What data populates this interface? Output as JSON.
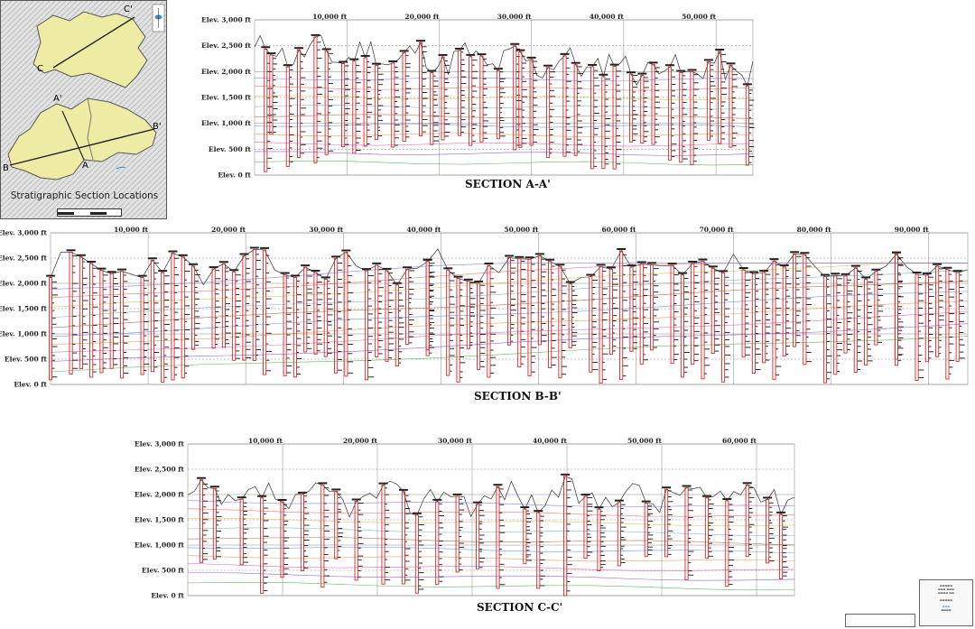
{
  "map": {
    "title": "Stratigraphic Section Locations",
    "labels": {
      "c_prime": "C'",
      "c": "C",
      "a_prime": "A'",
      "b_prime": "B'",
      "b": "B",
      "a": "A"
    }
  },
  "sections": [
    {
      "id": "A-A'",
      "title": "SECTION A-A'",
      "elev_labels": [
        "Elev. 3,000 ft",
        "Elev. 2,500 ft",
        "Elev. 2,000 ft",
        "Elev. 1,500 ft",
        "Elev. 1,000 ft",
        "Elev. 500 ft",
        "Elev. 0 ft"
      ],
      "dist_labels": [
        "10,000 ft",
        "20,000 ft",
        "30,000 ft",
        "40,000 ft",
        "50,000 ft"
      ],
      "max_distance_ft": 54000
    },
    {
      "id": "B-B'",
      "title": "SECTION B-B'",
      "elev_labels": [
        "Elev. 3,000 ft",
        "Elev. 2,500 ft",
        "Elev. 2,000 ft",
        "Elev. 1,500 ft",
        "Elev. 1,000 ft",
        "Elev. 500 ft",
        "Elev. 0 ft"
      ],
      "dist_labels": [
        "10,000 ft",
        "20,000 ft",
        "30,000 ft",
        "40,000 ft",
        "50,000 ft",
        "60,000 ft",
        "70,000 ft",
        "80,000 ft",
        "90,000 ft"
      ],
      "max_distance_ft": 94000
    },
    {
      "id": "C-C'",
      "title": "SECTION C-C'",
      "elev_labels": [
        "Elev. 3,000 ft",
        "Elev. 2,500 ft",
        "Elev. 2,000 ft",
        "Elev. 1,500 ft",
        "Elev. 1,000 ft",
        "Elev. 500 ft",
        "Elev. 0 ft"
      ],
      "dist_labels": [
        "10,000 ft",
        "20,000 ft",
        "30,000 ft",
        "40,000 ft",
        "50,000 ft",
        "60,000 ft"
      ],
      "max_distance_ft": 64000
    }
  ],
  "colors": {
    "well": "#d42a2a",
    "ground": "#333333",
    "grid": "#888888",
    "map_fill": "#eeeba4",
    "horizons": [
      "#3aa63a",
      "#7a3fb5",
      "#d24fa8",
      "#e08a3a",
      "#3a8bd4",
      "#a0522d",
      "#5ab0b0",
      "#c0c03a",
      "#e05a5a",
      "#6a6ad4"
    ]
  }
}
